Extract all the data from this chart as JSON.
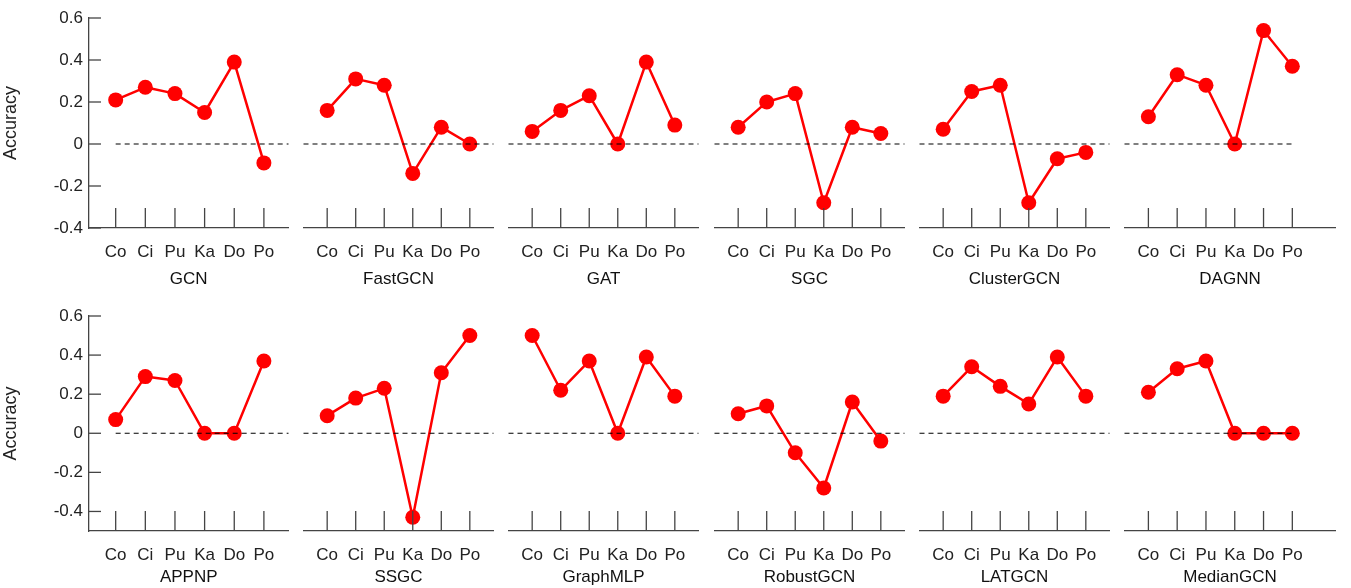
{
  "chart_data": [
    {
      "type": "line",
      "xlabel": "GCN",
      "ylabel": "Accuracy",
      "categories": [
        "Co",
        "Ci",
        "Pu",
        "Ka",
        "Do",
        "Po"
      ],
      "values": [
        0.21,
        0.27,
        0.24,
        0.15,
        0.39,
        -0.09
      ],
      "color": "#ff0000",
      "ylim": [
        -0.4,
        0.6
      ],
      "yticks": [
        -0.4,
        -0.2,
        0,
        0.2,
        0.4,
        0.6
      ],
      "marker": "circle",
      "line_style": "solid",
      "ref_lines": [
        {
          "axis": "y",
          "value": 0,
          "color": "#000000",
          "line_style": "dashed"
        }
      ]
    },
    {
      "type": "line",
      "xlabel": "FastGCN",
      "categories": [
        "Co",
        "Ci",
        "Pu",
        "Ka",
        "Do",
        "Po"
      ],
      "values": [
        0.16,
        0.31,
        0.28,
        -0.14,
        0.08,
        0
      ],
      "color": "#ff0000",
      "ylim": [
        -0.4,
        0.6
      ],
      "yticks": [
        -0.4,
        -0.2,
        0,
        0.2,
        0.4,
        0.6
      ],
      "tick_labels": "x",
      "marker": "circle",
      "line_style": "solid",
      "ref_lines": [
        {
          "axis": "y",
          "value": 0,
          "color": "#000000",
          "line_style": "dashed"
        }
      ]
    },
    {
      "type": "line",
      "xlabel": "GAT",
      "categories": [
        "Co",
        "Ci",
        "Pu",
        "Ka",
        "Do",
        "Po"
      ],
      "values": [
        0.06,
        0.16,
        0.23,
        0,
        0.39,
        0.09
      ],
      "color": "#ff0000",
      "ylim": [
        -0.4,
        0.6
      ],
      "yticks": [
        -0.4,
        -0.2,
        0,
        0.2,
        0.4,
        0.6
      ],
      "tick_labels": "x",
      "marker": "circle",
      "line_style": "solid",
      "ref_lines": [
        {
          "axis": "y",
          "value": 0,
          "color": "#000000",
          "line_style": "dashed"
        }
      ]
    },
    {
      "type": "line",
      "xlabel": "SGC",
      "categories": [
        "Co",
        "Ci",
        "Pu",
        "Ka",
        "Do",
        "Po"
      ],
      "values": [
        0.08,
        0.2,
        0.24,
        -0.28,
        0.08,
        0.05
      ],
      "color": "#ff0000",
      "ylim": [
        -0.4,
        0.6
      ],
      "yticks": [
        -0.4,
        -0.2,
        0,
        0.2,
        0.4,
        0.6
      ],
      "tick_labels": "x",
      "marker": "circle",
      "line_style": "solid",
      "ref_lines": [
        {
          "axis": "y",
          "value": 0,
          "color": "#000000",
          "line_style": "dashed"
        }
      ]
    },
    {
      "type": "line",
      "xlabel": "ClusterGCN",
      "categories": [
        "Co",
        "Ci",
        "Pu",
        "Ka",
        "Do",
        "Po"
      ],
      "values": [
        0.07,
        0.25,
        0.28,
        -0.28,
        -0.07,
        -0.04
      ],
      "color": "#ff0000",
      "ylim": [
        -0.4,
        0.6
      ],
      "yticks": [
        -0.4,
        -0.2,
        0,
        0.2,
        0.4,
        0.6
      ],
      "tick_labels": "x",
      "marker": "circle",
      "line_style": "solid",
      "ref_lines": [
        {
          "axis": "y",
          "value": 0,
          "color": "#000000",
          "line_style": "dashed"
        }
      ]
    },
    {
      "type": "line",
      "xlabel": "DAGNN",
      "categories": [
        "Co",
        "Ci",
        "Pu",
        "Ka",
        "Do",
        "Po"
      ],
      "values": [
        0.13,
        0.33,
        0.28,
        0,
        0.54,
        0.37
      ],
      "color": "#ff0000",
      "ylim": [
        -0.4,
        0.6
      ],
      "yticks": [
        -0.4,
        -0.2,
        0,
        0.2,
        0.4,
        0.6
      ],
      "tick_labels": "x",
      "marker": "circle",
      "line_style": "solid",
      "ref_lines": [
        {
          "axis": "y",
          "value": 0,
          "color": "#000000",
          "line_style": "dashed"
        }
      ]
    },
    {
      "type": "line",
      "xlabel": "APPNP",
      "ylabel": "Accuracy",
      "categories": [
        "Co",
        "Ci",
        "Pu",
        "Ka",
        "Do",
        "Po"
      ],
      "values": [
        0.07,
        0.29,
        0.27,
        0,
        0,
        0.37
      ],
      "color": "#ff0000",
      "ylim": [
        -0.5,
        0.6
      ],
      "yticks": [
        -0.4,
        -0.2,
        0,
        0.2,
        0.4,
        0.6
      ],
      "marker": "circle",
      "line_style": "solid",
      "ref_lines": [
        {
          "axis": "y",
          "value": 0,
          "color": "#000000",
          "line_style": "dashed"
        }
      ]
    },
    {
      "type": "line",
      "xlabel": "SSGC",
      "categories": [
        "Co",
        "Ci",
        "Pu",
        "Ka",
        "Do",
        "Po"
      ],
      "values": [
        0.09,
        0.18,
        0.23,
        -0.43,
        0.31,
        0.5
      ],
      "color": "#ff0000",
      "ylim": [
        -0.5,
        0.6
      ],
      "yticks": [
        -0.4,
        -0.2,
        0,
        0.2,
        0.4,
        0.6
      ],
      "tick_labels": "x",
      "marker": "circle",
      "line_style": "solid",
      "ref_lines": [
        {
          "axis": "y",
          "value": 0,
          "color": "#000000",
          "line_style": "dashed"
        }
      ]
    },
    {
      "type": "line",
      "xlabel": "GraphMLP",
      "categories": [
        "Co",
        "Ci",
        "Pu",
        "Ka",
        "Do",
        "Po"
      ],
      "values": [
        0.5,
        0.22,
        0.37,
        0,
        0.39,
        0.19
      ],
      "color": "#ff0000",
      "ylim": [
        -0.5,
        0.6
      ],
      "yticks": [
        -0.4,
        -0.2,
        0,
        0.2,
        0.4,
        0.6
      ],
      "tick_labels": "x",
      "marker": "circle",
      "line_style": "solid",
      "ref_lines": [
        {
          "axis": "y",
          "value": 0,
          "color": "#000000",
          "line_style": "dashed"
        }
      ]
    },
    {
      "type": "line",
      "xlabel": "RobustGCN",
      "categories": [
        "Co",
        "Ci",
        "Pu",
        "Ka",
        "Do",
        "Po"
      ],
      "values": [
        0.1,
        0.14,
        -0.1,
        -0.28,
        0.16,
        -0.04
      ],
      "color": "#ff0000",
      "ylim": [
        -0.5,
        0.6
      ],
      "yticks": [
        -0.4,
        -0.2,
        0,
        0.2,
        0.4,
        0.6
      ],
      "tick_labels": "x",
      "marker": "circle",
      "line_style": "solid",
      "ref_lines": [
        {
          "axis": "y",
          "value": 0,
          "color": "#000000",
          "line_style": "dashed"
        }
      ]
    },
    {
      "type": "line",
      "xlabel": "LATGCN",
      "categories": [
        "Co",
        "Ci",
        "Pu",
        "Ka",
        "Do",
        "Po"
      ],
      "values": [
        0.19,
        0.34,
        0.24,
        0.15,
        0.39,
        0.19
      ],
      "color": "#ff0000",
      "ylim": [
        -0.5,
        0.6
      ],
      "yticks": [
        -0.4,
        -0.2,
        0,
        0.2,
        0.4,
        0.6
      ],
      "tick_labels": "x",
      "marker": "circle",
      "line_style": "solid",
      "ref_lines": [
        {
          "axis": "y",
          "value": 0,
          "color": "#000000",
          "line_style": "dashed"
        }
      ]
    },
    {
      "type": "line",
      "xlabel": "MedianGCN",
      "categories": [
        "Co",
        "Ci",
        "Pu",
        "Ka",
        "Do",
        "Po"
      ],
      "values": [
        0.21,
        0.33,
        0.37,
        0,
        0,
        0
      ],
      "color": "#ff0000",
      "ylim": [
        -0.5,
        0.6
      ],
      "yticks": [
        -0.4,
        -0.2,
        0,
        0.2,
        0.4,
        0.6
      ],
      "tick_labels": "x",
      "marker": "circle",
      "line_style": "solid",
      "ref_lines": [
        {
          "axis": "y",
          "value": 0,
          "color": "#000000",
          "line_style": "dashed"
        }
      ]
    }
  ]
}
